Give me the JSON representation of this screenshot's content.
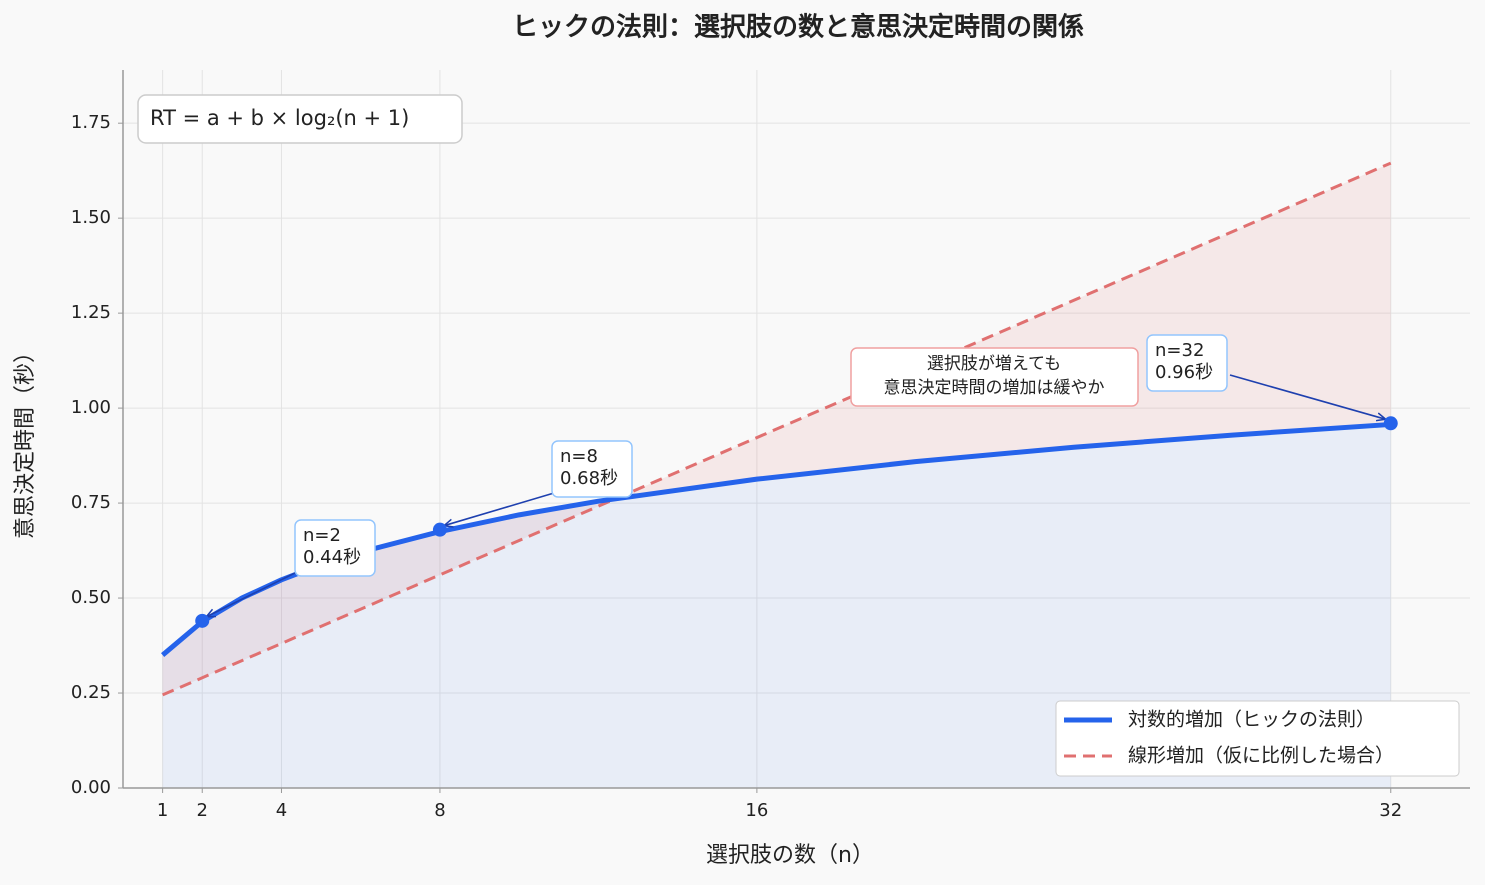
{
  "chart_data": {
    "type": "line",
    "title": "ヒックの法則：選択肢の数と意思決定時間の関係",
    "x_label": "選択肢の数（n）",
    "y_label": "意思決定時間（秒）",
    "formula": "RT = a + b × log₂(n + 1)",
    "callout": [
      "選択肢が増えても",
      "意思決定時間の増加は緩やか"
    ],
    "xlim": [
      0,
      34
    ],
    "ylim": [
      0,
      1.89
    ],
    "xticks": [
      1,
      2,
      4,
      8,
      16,
      32
    ],
    "yticks": [
      {
        "value": 0,
        "label": "0.00"
      },
      {
        "value": 0.25,
        "label": "0.25"
      },
      {
        "value": 0.5,
        "label": "0.50"
      },
      {
        "value": 0.75,
        "label": "0.75"
      },
      {
        "value": 1,
        "label": "1.00"
      },
      {
        "value": 1.25,
        "label": "1.25"
      },
      {
        "value": 1.5,
        "label": "1.50"
      },
      {
        "value": 1.75,
        "label": "1.75"
      }
    ],
    "grid": true,
    "legend": "lower right",
    "series": [
      {
        "name": "対数的増加（ヒックの法則）",
        "color": "#2563eb",
        "style": "solid",
        "x": [
          1,
          2,
          3,
          4,
          5,
          6,
          8,
          10,
          12,
          16,
          20,
          24,
          28,
          32
        ],
        "values": [
          0.35,
          0.438,
          0.5,
          0.548,
          0.588,
          0.621,
          0.675,
          0.719,
          0.755,
          0.813,
          0.859,
          0.897,
          0.929,
          0.957
        ]
      },
      {
        "name": "線形増加（仮に比例した場合）",
        "color": "#e07070",
        "style": "dashed",
        "x": [
          1,
          32
        ],
        "values": [
          0.245,
          1.645
        ]
      }
    ],
    "annotations": [
      {
        "x": 2,
        "y": 0.44,
        "lines": [
          "n=2",
          "0.44秒"
        ]
      },
      {
        "x": 8,
        "y": 0.68,
        "lines": [
          "n=8",
          "0.68秒"
        ]
      },
      {
        "x": 32,
        "y": 0.96,
        "lines": [
          "n=32",
          "0.96秒"
        ]
      }
    ]
  }
}
